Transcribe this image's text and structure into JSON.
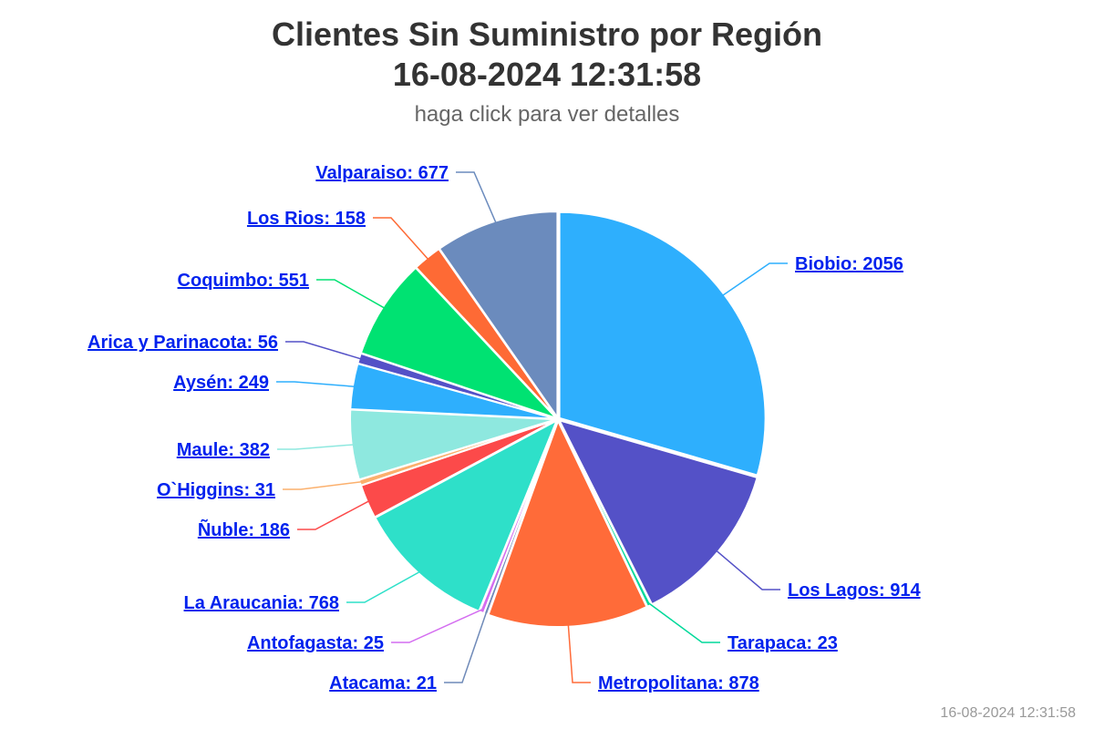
{
  "chart": {
    "title_line1": "Clientes Sin Suministro por Región",
    "title_line2": "16-08-2024 12:31:58",
    "subtitle": "haga click para ver detalles",
    "credit": "16-08-2024 12:31:58"
  },
  "chart_data": {
    "type": "pie",
    "title": "Clientes Sin Suministro por Región 16-08-2024 12:31:58",
    "subtitle": "haga click para ver detalles",
    "slices": [
      {
        "name": "Biobio",
        "value": 2056,
        "label": "Biobio: 2056",
        "color": "#2eaffd"
      },
      {
        "name": "Los Lagos",
        "value": 914,
        "label": "Los Lagos: 914",
        "color": "#5451c7"
      },
      {
        "name": "Tarapaca",
        "value": 23,
        "label": "Tarapaca: 23",
        "color": "#00d99a"
      },
      {
        "name": "Metropolitana",
        "value": 878,
        "label": "Metropolitana: 878",
        "color": "#ff6b39"
      },
      {
        "name": "Atacama",
        "value": 21,
        "label": "Atacama: 21",
        "color": "#6f8ab8"
      },
      {
        "name": "Antofagasta",
        "value": 25,
        "label": "Antofagasta: 25",
        "color": "#d46df0"
      },
      {
        "name": "La Araucania",
        "value": 768,
        "label": "La Araucania: 768",
        "color": "#2ee0c9"
      },
      {
        "name": "Ñuble",
        "value": 186,
        "label": "Ñuble: 186",
        "color": "#fc4a4a"
      },
      {
        "name": "O`Higgins",
        "value": 31,
        "label": "O`Higgins: 31",
        "color": "#fbb06d"
      },
      {
        "name": "Maule",
        "value": 382,
        "label": "Maule: 382",
        "color": "#8ee8df"
      },
      {
        "name": "Aysén",
        "value": 249,
        "label": "Aysén: 249",
        "color": "#2eaffd"
      },
      {
        "name": "Arica y Parinacota",
        "value": 56,
        "label": "Arica y Parinacota: 56",
        "color": "#5451c7"
      },
      {
        "name": "Coquimbo",
        "value": 551,
        "label": "Coquimbo: 551",
        "color": "#00e272"
      },
      {
        "name": "Los Rios",
        "value": 158,
        "label": "Los Rios: 158",
        "color": "#fe6a35"
      },
      {
        "name": "Valparaiso",
        "value": 677,
        "label": "Valparaiso: 677",
        "color": "#6b8bbd"
      }
    ]
  }
}
